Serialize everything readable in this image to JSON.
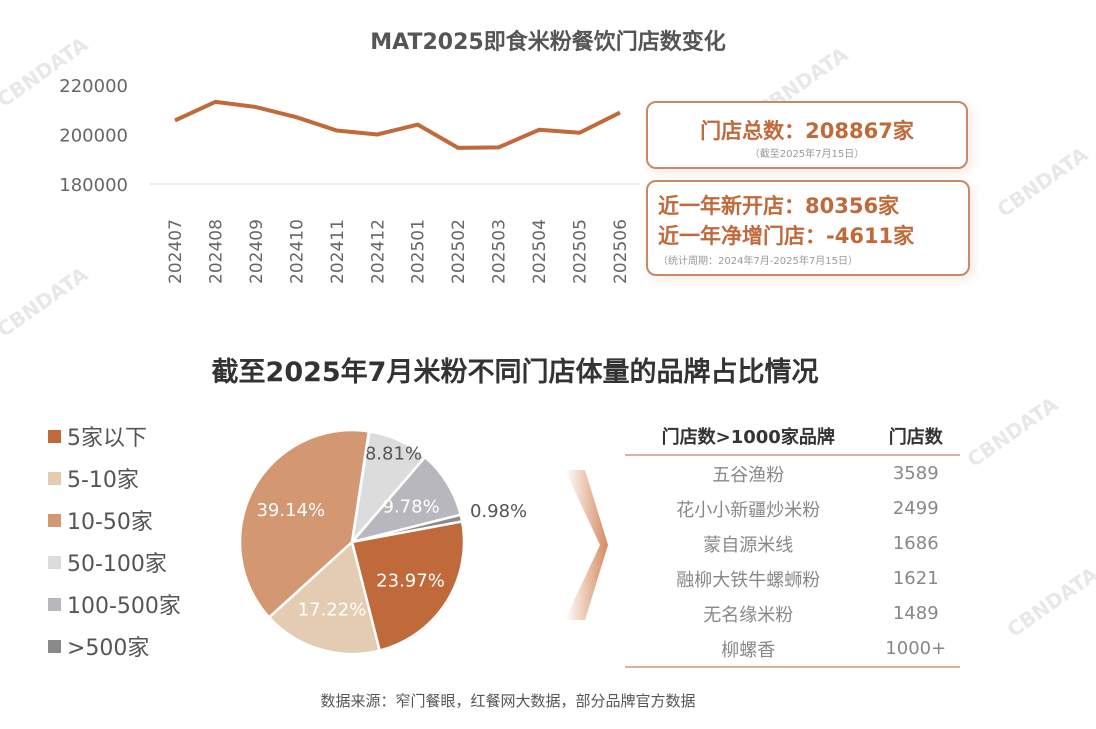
{
  "watermark": "CBNDATA",
  "chart_data": [
    {
      "type": "line",
      "title": "MAT2025即食米粉餐饮门店数变化",
      "x": [
        "202407",
        "202408",
        "202409",
        "202410",
        "202411",
        "202412",
        "202501",
        "202502",
        "202503",
        "202504",
        "202505",
        "202506"
      ],
      "series": [
        {
          "values": [
            205700,
            213200,
            211100,
            207000,
            201600,
            200000,
            204000,
            194600,
            194800,
            201900,
            200700,
            208867
          ]
        }
      ],
      "ylim": [
        180000,
        220000
      ],
      "yticks": [
        "220000",
        "200000",
        "180000"
      ],
      "grid": false,
      "color": "#c0693a"
    },
    {
      "type": "pie",
      "title": "截至2025年7月米粉不同门店体量的品牌占比情况",
      "legend_position": "left",
      "slices": [
        {
          "label": "5家以下",
          "value": 23.97,
          "text": "23.97%",
          "color": "#c0693a"
        },
        {
          "label": "5-10家",
          "value": 17.22,
          "text": "17.22%",
          "color": "#e3ccb1"
        },
        {
          "label": "10-50家",
          "value": 39.14,
          "text": "39.14%",
          "color": "#d39771"
        },
        {
          "label": "50-100家",
          "value": 8.81,
          "text": "8.81%",
          "color": "#dcdcdc"
        },
        {
          "label": "100-500家",
          "value": 9.78,
          "text": "9.78%",
          "color": "#b7b7bd"
        },
        {
          "label": ">500家",
          "value": 0.98,
          "text": "0.98%",
          "color": "#8a8a8a"
        }
      ]
    }
  ],
  "stats": {
    "total_label": "门店总数：208867家",
    "total_note": "（截至2025年7月15日）",
    "new_label": "近一年新开店：80356家",
    "net_label": "近一年净增门店：-4611家",
    "period_note": "（统计周期：2024年7月-2025年7月15日）"
  },
  "table": {
    "headers": [
      "门店数>1000家品牌",
      "门店数"
    ],
    "rows": [
      [
        "五谷渔粉",
        "3589"
      ],
      [
        "花小小新疆炒米粉",
        "2499"
      ],
      [
        "蒙自源米线",
        "1686"
      ],
      [
        "融柳大铁牛螺蛳粉",
        "1621"
      ],
      [
        "无名缘米粉",
        "1489"
      ],
      [
        "柳螺香",
        "1000+"
      ]
    ]
  },
  "source": "数据来源：窄门餐眼，红餐网大数据，部分品牌官方数据"
}
